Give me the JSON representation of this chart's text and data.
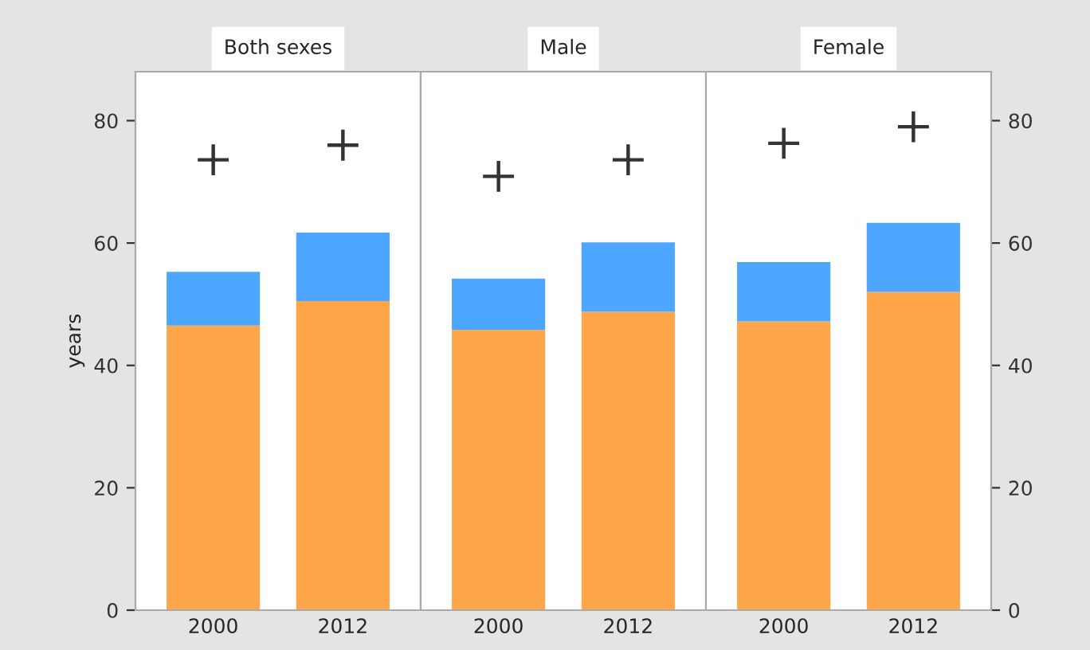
{
  "chart_data": [
    {
      "type": "bar",
      "title": "Both sexes",
      "ylabel": "years",
      "categories": [
        "2000",
        "2012"
      ],
      "stacked": true,
      "ylim": [
        0,
        88
      ],
      "yticks": [
        0,
        20,
        40,
        60,
        80
      ],
      "marker": "cross",
      "series": [
        {
          "color": "#ffa54a",
          "values": [
            46.5,
            50.5
          ]
        },
        {
          "color": "#4da6ff",
          "values": [
            8.8,
            11.2
          ]
        },
        {
          "type": "scatter",
          "color": "#333333",
          "values": [
            73.6,
            76
          ]
        }
      ]
    },
    {
      "type": "bar",
      "title": "Male",
      "categories": [
        "2000",
        "2012"
      ],
      "stacked": true,
      "ylim": [
        0,
        88
      ],
      "yticks": [
        0,
        20,
        40,
        60,
        80
      ],
      "tick_labels": "x",
      "marker": "cross",
      "series": [
        {
          "color": "#ffa54a",
          "values": [
            45.8,
            48.8
          ]
        },
        {
          "color": "#4da6ff",
          "values": [
            8.4,
            11.3
          ]
        },
        {
          "type": "scatter",
          "color": "#333333",
          "values": [
            70.9,
            73.6
          ]
        }
      ]
    },
    {
      "type": "bar",
      "title": "Female",
      "categories": [
        "2000",
        "2012"
      ],
      "stacked": true,
      "ylim": [
        0,
        88
      ],
      "yticks": [
        0,
        20,
        40,
        60,
        80
      ],
      "marker": "cross",
      "series": [
        {
          "color": "#ffa54a",
          "values": [
            47.2,
            52
          ]
        },
        {
          "color": "#4da6ff",
          "values": [
            9.7,
            11.3
          ]
        },
        {
          "type": "scatter",
          "color": "#333333",
          "values": [
            76.3,
            79
          ]
        }
      ]
    }
  ]
}
